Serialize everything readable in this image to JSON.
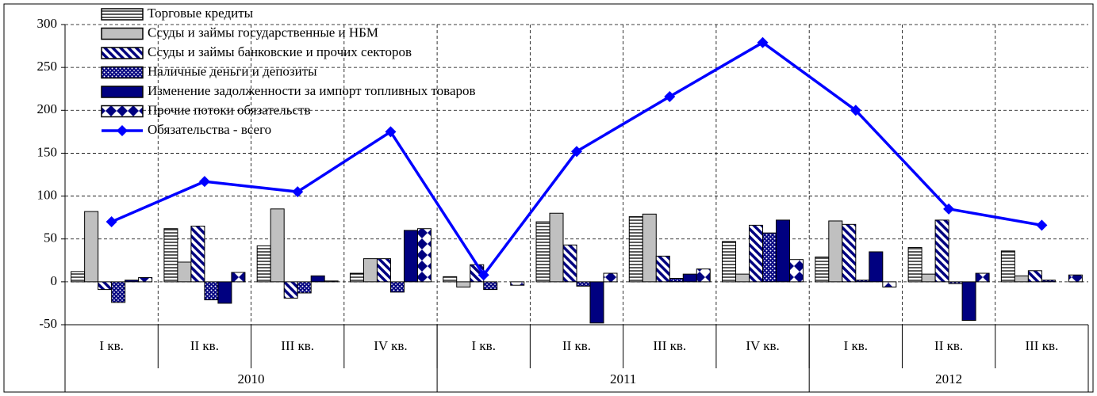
{
  "chart_data": {
    "type": "bar",
    "categories": [
      "I кв.",
      "II кв.",
      "III кв.",
      "IV кв.",
      "I кв.",
      "II кв.",
      "III кв.",
      "IV кв.",
      "I кв.",
      "II кв.",
      "III кв."
    ],
    "year_groups": [
      {
        "name": "2010",
        "count": 4
      },
      {
        "name": "2011",
        "count": 4
      },
      {
        "name": "2012",
        "count": 3
      }
    ],
    "series": [
      {
        "name": "Торговые кредиты",
        "color": "#000000",
        "pattern": "horizontal",
        "values": [
          12,
          62,
          42,
          10,
          6,
          70,
          76,
          47,
          29,
          40,
          36
        ]
      },
      {
        "name": "Ссуды и займы государственные и НБМ",
        "color": "#c0c0c0",
        "pattern": "solid",
        "values": [
          82,
          23,
          85,
          27,
          -6,
          80,
          79,
          9,
          71,
          9,
          7
        ]
      },
      {
        "name": "Ссуды и займы банковские и прочих секторов",
        "color": "#000080",
        "pattern": "diagonal",
        "values": [
          -9,
          65,
          -19,
          27,
          20,
          43,
          30,
          66,
          67,
          72,
          13
        ]
      },
      {
        "name": "Наличные деньги и депозиты",
        "color": "#000080",
        "pattern": "dots",
        "values": [
          -24,
          -21,
          -13,
          -12,
          -9,
          -5,
          4,
          57,
          2,
          -2,
          2
        ]
      },
      {
        "name": "Изменение задолженности за импорт топливных товаров",
        "color": "#000080",
        "pattern": "solid",
        "values": [
          2,
          -25,
          7,
          60,
          0,
          -48,
          9,
          72,
          35,
          -45,
          0
        ]
      },
      {
        "name": "Прочие потоки обязательств",
        "color": "#000080",
        "pattern": "diamonds",
        "values": [
          5,
          11,
          1,
          62,
          -4,
          10,
          15,
          26,
          -6,
          10,
          8
        ]
      },
      {
        "name": "Обязательства - всего",
        "type": "line",
        "color": "#0000ff",
        "values": [
          70,
          117,
          105,
          175,
          8,
          152,
          216,
          279,
          200,
          85,
          66
        ]
      }
    ],
    "ylim": [
      -50,
      300
    ],
    "yticks": [
      -50,
      0,
      50,
      100,
      150,
      200,
      250,
      300
    ],
    "grid": true,
    "legend": "top-left"
  }
}
